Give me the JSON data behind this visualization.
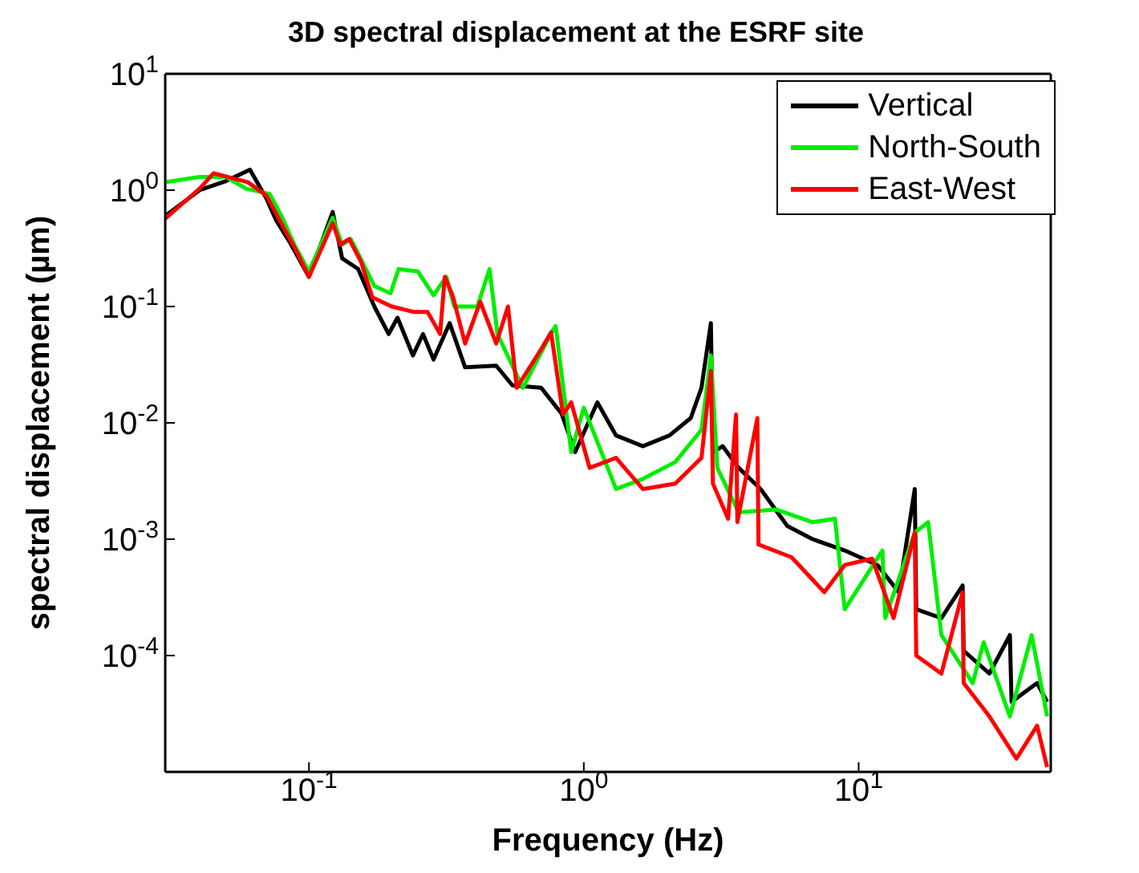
{
  "chart_data": {
    "type": "line",
    "title": "3D spectral displacement at the ESRF site",
    "xlabel": "Frequency  (Hz)",
    "ylabel": "spectral displacement (µm)",
    "log": "xy",
    "xlim": [
      0.03,
      50
    ],
    "ylim": [
      1e-05,
      10
    ],
    "xticks": [
      {
        "value": 0.1,
        "label": "10$^{-1}$"
      },
      {
        "value": 1,
        "label": "10$^{0}$"
      },
      {
        "value": 10,
        "label": "10$^{1}$"
      }
    ],
    "yticks": [
      {
        "value": 10,
        "label": "10$^{1}$"
      },
      {
        "value": 1,
        "label": "10$^{0}$"
      },
      {
        "value": 0.1,
        "label": "10$^{-1}$"
      },
      {
        "value": 0.01,
        "label": "10$^{-2}$"
      },
      {
        "value": 0.001,
        "label": "10$^{-3}$"
      },
      {
        "value": 0.0001,
        "label": "10$^{-4}$"
      }
    ],
    "legend": "top right",
    "line_style": "solid",
    "marker": "none",
    "series": [
      {
        "name": "Vertical",
        "color": "#000000",
        "x": [
          0.03,
          0.04,
          0.05,
          0.061,
          0.07,
          0.076,
          0.085,
          0.1,
          0.122,
          0.132,
          0.151,
          0.173,
          0.195,
          0.21,
          0.239,
          0.26,
          0.284,
          0.325,
          0.37,
          0.48,
          0.55,
          0.7,
          0.83,
          0.93,
          1.12,
          1.31,
          1.64,
          2.05,
          2.45,
          2.68,
          2.9,
          2.95,
          3.2,
          3.66,
          4.4,
          5.5,
          6.8,
          8.9,
          11.7,
          14,
          16,
          16.2,
          20,
          23.9,
          24.1,
          29.9,
          35.5,
          36,
          44.6,
          48.5
        ],
        "values": [
          0.6,
          1.0,
          1.2,
          1.5,
          0.85,
          0.55,
          0.36,
          0.18,
          0.65,
          0.26,
          0.21,
          0.1,
          0.058,
          0.08,
          0.038,
          0.058,
          0.035,
          0.072,
          0.03,
          0.031,
          0.021,
          0.02,
          0.012,
          0.0056,
          0.015,
          0.0078,
          0.0063,
          0.0078,
          0.011,
          0.02,
          0.072,
          0.0056,
          0.0063,
          0.0041,
          0.0027,
          0.0013,
          0.001,
          0.0008,
          0.0006,
          0.00035,
          0.0027,
          0.00025,
          0.00021,
          0.0004,
          0.00011,
          7e-05,
          0.00015,
          4e-05,
          5.8e-05,
          4e-05
        ]
      },
      {
        "name": "North-South",
        "color": "#00ee00",
        "x": [
          0.03,
          0.04,
          0.05,
          0.059,
          0.072,
          0.08,
          0.089,
          0.1,
          0.122,
          0.132,
          0.142,
          0.173,
          0.198,
          0.212,
          0.249,
          0.284,
          0.316,
          0.338,
          0.41,
          0.454,
          0.485,
          0.6,
          0.77,
          0.79,
          0.9,
          1.0,
          1.31,
          1.64,
          2.15,
          2.68,
          2.9,
          3.06,
          3.66,
          5.0,
          6.8,
          8.2,
          8.9,
          12.2,
          12.5,
          16,
          17.9,
          20,
          26,
          28.5,
          35.5,
          42.6,
          48.5
        ],
        "values": [
          1.17,
          1.3,
          1.3,
          1.03,
          0.93,
          0.58,
          0.33,
          0.2,
          0.58,
          0.34,
          0.38,
          0.15,
          0.13,
          0.21,
          0.2,
          0.125,
          0.18,
          0.1,
          0.1,
          0.21,
          0.058,
          0.02,
          0.062,
          0.068,
          0.0056,
          0.0135,
          0.0027,
          0.0033,
          0.0046,
          0.0087,
          0.038,
          0.0041,
          0.0017,
          0.0018,
          0.0014,
          0.0015,
          0.00025,
          0.0008,
          0.00021,
          0.00114,
          0.0014,
          0.00015,
          5.8e-05,
          0.00013,
          3e-05,
          0.00015,
          3e-05
        ]
      },
      {
        "name": "East-West",
        "color": "#ff0000",
        "x": [
          0.03,
          0.04,
          0.045,
          0.06,
          0.07,
          0.08,
          0.09,
          0.1,
          0.122,
          0.13,
          0.14,
          0.155,
          0.17,
          0.2,
          0.24,
          0.27,
          0.3,
          0.312,
          0.333,
          0.37,
          0.42,
          0.48,
          0.53,
          0.57,
          0.7,
          0.76,
          0.84,
          0.9,
          1.05,
          1.31,
          1.64,
          2.15,
          2.68,
          2.9,
          2.95,
          3.35,
          3.58,
          3.62,
          4.28,
          4.32,
          5.7,
          7.5,
          8.9,
          11.2,
          13.4,
          16,
          16.2,
          20,
          23.9,
          24.1,
          29.9,
          37.5,
          44.6,
          48.5
        ],
        "values": [
          0.57,
          1.03,
          1.4,
          1.17,
          0.9,
          0.5,
          0.3,
          0.18,
          0.52,
          0.34,
          0.38,
          0.24,
          0.12,
          0.1,
          0.09,
          0.09,
          0.058,
          0.18,
          0.125,
          0.048,
          0.11,
          0.048,
          0.1,
          0.02,
          0.043,
          0.06,
          0.0118,
          0.015,
          0.0041,
          0.005,
          0.0027,
          0.003,
          0.005,
          0.028,
          0.003,
          0.0015,
          0.0118,
          0.0014,
          0.011,
          0.0009,
          0.0007,
          0.00035,
          0.0006,
          0.00068,
          0.00021,
          0.00114,
          0.0001,
          7e-05,
          0.00035,
          5.8e-05,
          3e-05,
          1.3e-05,
          2.5e-05,
          1.1e-05
        ]
      }
    ]
  }
}
